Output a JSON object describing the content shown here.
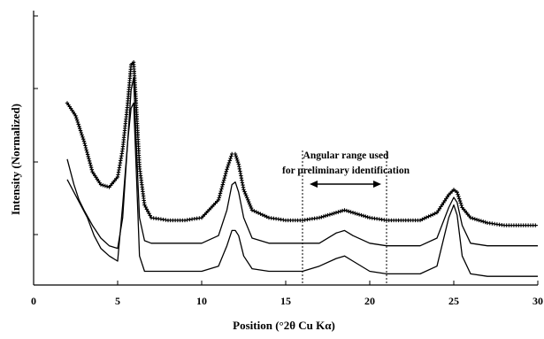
{
  "chart_data": {
    "type": "line",
    "title": "",
    "xlabel": "Position (°2θ Cu Kα)",
    "ylabel": "Intensity (Normalized)",
    "xlim": [
      0,
      30
    ],
    "xticks": [
      0,
      5,
      10,
      15,
      20,
      25,
      30
    ],
    "grid": false,
    "legend": "none",
    "series": [
      {
        "style": "marker-crosses",
        "color": "#000000",
        "x": [
          2.0,
          2.5,
          3.0,
          3.5,
          4.0,
          4.5,
          5.0,
          5.3,
          5.6,
          5.8,
          5.95,
          6.1,
          6.3,
          6.6,
          7.0,
          8.0,
          9.0,
          10.0,
          11.0,
          11.5,
          11.8,
          12.0,
          12.2,
          12.5,
          13.0,
          14.0,
          15.0,
          16.0,
          17.0,
          18.0,
          18.5,
          19.0,
          20.0,
          21.0,
          22.0,
          23.0,
          24.0,
          24.7,
          25.0,
          25.2,
          25.5,
          26.0,
          27.0,
          28.0,
          29.0,
          30.0
        ],
        "y": [
          0.7,
          0.65,
          0.55,
          0.43,
          0.38,
          0.37,
          0.41,
          0.52,
          0.7,
          0.85,
          0.86,
          0.7,
          0.45,
          0.3,
          0.25,
          0.24,
          0.24,
          0.25,
          0.32,
          0.44,
          0.5,
          0.5,
          0.46,
          0.36,
          0.28,
          0.25,
          0.24,
          0.24,
          0.25,
          0.27,
          0.28,
          0.27,
          0.25,
          0.24,
          0.24,
          0.24,
          0.27,
          0.34,
          0.36,
          0.35,
          0.29,
          0.25,
          0.23,
          0.22,
          0.22,
          0.22
        ]
      },
      {
        "style": "line",
        "color": "#000000",
        "x": [
          2.0,
          2.4,
          2.7,
          3.0,
          3.5,
          4.0,
          4.5,
          5.0,
          5.3,
          5.6,
          5.8,
          5.95,
          6.1,
          6.3,
          6.6,
          7.0,
          8.0,
          9.0,
          10.0,
          11.0,
          11.5,
          11.8,
          12.0,
          12.2,
          12.5,
          13.0,
          14.0,
          15.0,
          16.0,
          17.0,
          18.0,
          18.5,
          19.0,
          20.0,
          21.0,
          22.0,
          23.0,
          24.0,
          24.7,
          25.0,
          25.2,
          25.5,
          26.0,
          27.0,
          28.0,
          29.0,
          30.0
        ],
        "y": [
          0.48,
          0.38,
          0.32,
          0.28,
          0.22,
          0.17,
          0.14,
          0.13,
          0.25,
          0.55,
          0.75,
          0.8,
          0.55,
          0.25,
          0.16,
          0.15,
          0.15,
          0.15,
          0.15,
          0.18,
          0.28,
          0.38,
          0.39,
          0.35,
          0.25,
          0.17,
          0.15,
          0.15,
          0.15,
          0.15,
          0.19,
          0.2,
          0.18,
          0.15,
          0.14,
          0.14,
          0.14,
          0.17,
          0.29,
          0.33,
          0.31,
          0.22,
          0.15,
          0.14,
          0.14,
          0.14,
          0.14
        ]
      },
      {
        "style": "line",
        "color": "#000000",
        "x": [
          2.0,
          2.4,
          2.8,
          3.2,
          3.6,
          4.0,
          4.5,
          5.0,
          5.3,
          5.6,
          5.8,
          5.95,
          6.1,
          6.3,
          6.6,
          7.0,
          8.0,
          9.0,
          10.0,
          11.0,
          11.5,
          11.8,
          12.0,
          12.2,
          12.5,
          13.0,
          14.0,
          15.0,
          16.0,
          17.0,
          18.0,
          18.5,
          19.0,
          20.0,
          21.0,
          22.0,
          23.0,
          24.0,
          24.7,
          25.0,
          25.2,
          25.5,
          26.0,
          27.0,
          28.0,
          29.0,
          30.0
        ],
        "y": [
          0.4,
          0.35,
          0.3,
          0.25,
          0.18,
          0.13,
          0.1,
          0.08,
          0.3,
          0.55,
          0.68,
          0.7,
          0.45,
          0.1,
          0.04,
          0.04,
          0.04,
          0.04,
          0.04,
          0.06,
          0.14,
          0.2,
          0.2,
          0.18,
          0.1,
          0.05,
          0.04,
          0.04,
          0.04,
          0.06,
          0.09,
          0.1,
          0.08,
          0.04,
          0.03,
          0.03,
          0.03,
          0.06,
          0.25,
          0.3,
          0.26,
          0.1,
          0.03,
          0.02,
          0.02,
          0.02,
          0.02
        ]
      }
    ],
    "annotations": {
      "text_line1": "Angular range used",
      "text_line2": "for preliminary identification",
      "range": [
        16,
        21
      ]
    }
  }
}
